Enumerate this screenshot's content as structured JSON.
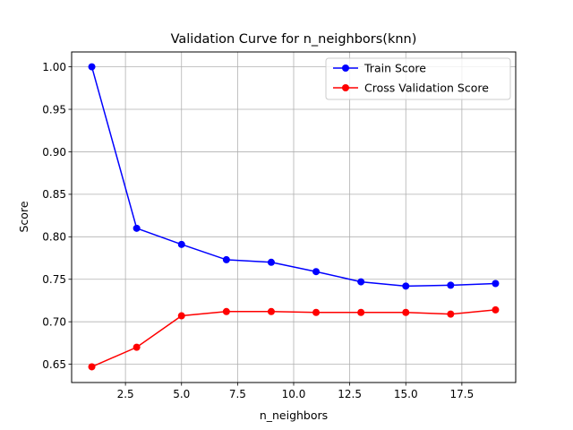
{
  "chart_data": {
    "type": "line",
    "title": "Validation Curve for n_neighbors(knn)",
    "xlabel": "n_neighbors",
    "ylabel": "Score",
    "x": [
      1,
      3,
      5,
      7,
      9,
      11,
      13,
      15,
      17,
      19
    ],
    "xlim": [
      0.1,
      19.9
    ],
    "ylim": [
      0.6285,
      1.0175
    ],
    "xticks": [
      2.5,
      5.0,
      7.5,
      10.0,
      12.5,
      15.0,
      17.5
    ],
    "xtick_labels": [
      "2.5",
      "5.0",
      "7.5",
      "10.0",
      "12.5",
      "15.0",
      "17.5"
    ],
    "yticks": [
      0.65,
      0.7,
      0.75,
      0.8,
      0.85,
      0.9,
      0.95,
      1.0
    ],
    "ytick_labels": [
      "0.65",
      "0.70",
      "0.75",
      "0.80",
      "0.85",
      "0.90",
      "0.95",
      "1.00"
    ],
    "grid": true,
    "legend_position": "top-right",
    "series": [
      {
        "name": "Train Score",
        "color": "#0000ff",
        "values": [
          1.0,
          0.81,
          0.791,
          0.773,
          0.77,
          0.759,
          0.747,
          0.742,
          0.743,
          0.745
        ]
      },
      {
        "name": "Cross Validation Score",
        "color": "#ff0000",
        "values": [
          0.647,
          0.67,
          0.707,
          0.712,
          0.712,
          0.711,
          0.711,
          0.711,
          0.709,
          0.714
        ]
      }
    ]
  }
}
